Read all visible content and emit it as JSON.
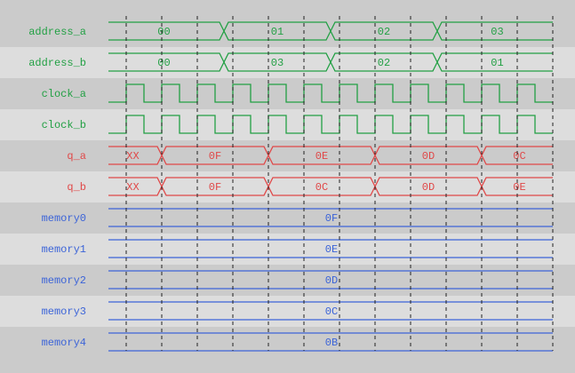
{
  "colors": {
    "background_dark": "#cbcbcb",
    "background_light": "#dddddd",
    "green": "#22a044",
    "red": "#e04848",
    "blue": "#3c64d8",
    "grid": "#222222"
  },
  "time_divisions": 12,
  "signals": [
    {
      "name": "address_a",
      "kind": "bus",
      "color": "green",
      "segments": [
        {
          "from": 0,
          "to": 3.25,
          "value": "00"
        },
        {
          "from": 3.25,
          "to": 6.25,
          "value": "01"
        },
        {
          "from": 6.25,
          "to": 9.25,
          "value": "02"
        },
        {
          "from": 9.25,
          "to": 12.5,
          "value": "03"
        }
      ]
    },
    {
      "name": "address_b",
      "kind": "bus",
      "color": "green",
      "segments": [
        {
          "from": 0,
          "to": 3.25,
          "value": "00"
        },
        {
          "from": 3.25,
          "to": 6.25,
          "value": "03"
        },
        {
          "from": 6.25,
          "to": 9.25,
          "value": "02"
        },
        {
          "from": 9.25,
          "to": 12.5,
          "value": "01"
        }
      ]
    },
    {
      "name": "clock_a",
      "kind": "clock",
      "color": "green"
    },
    {
      "name": "clock_b",
      "kind": "clock",
      "color": "green"
    },
    {
      "name": "q_a",
      "kind": "bus",
      "color": "red",
      "segments": [
        {
          "from": 0,
          "to": 1.5,
          "value": "XX"
        },
        {
          "from": 1.5,
          "to": 4.5,
          "value": "0F"
        },
        {
          "from": 4.5,
          "to": 7.5,
          "value": "0E"
        },
        {
          "from": 7.5,
          "to": 10.5,
          "value": "0D"
        },
        {
          "from": 10.5,
          "to": 12.5,
          "value": "0C"
        }
      ]
    },
    {
      "name": "q_b",
      "kind": "bus",
      "color": "red",
      "segments": [
        {
          "from": 0,
          "to": 1.5,
          "value": "XX"
        },
        {
          "from": 1.5,
          "to": 4.5,
          "value": "0F"
        },
        {
          "from": 4.5,
          "to": 7.5,
          "value": "0C"
        },
        {
          "from": 7.5,
          "to": 10.5,
          "value": "0D"
        },
        {
          "from": 10.5,
          "to": 12.5,
          "value": "0E"
        }
      ]
    },
    {
      "name": "memory0",
      "kind": "bus",
      "color": "blue",
      "segments": [
        {
          "from": 0,
          "to": 12.5,
          "value": "0F"
        }
      ]
    },
    {
      "name": "memory1",
      "kind": "bus",
      "color": "blue",
      "segments": [
        {
          "from": 0,
          "to": 12.5,
          "value": "0E"
        }
      ]
    },
    {
      "name": "memory2",
      "kind": "bus",
      "color": "blue",
      "segments": [
        {
          "from": 0,
          "to": 12.5,
          "value": "0D"
        }
      ]
    },
    {
      "name": "memory3",
      "kind": "bus",
      "color": "blue",
      "segments": [
        {
          "from": 0,
          "to": 12.5,
          "value": "0C"
        }
      ]
    },
    {
      "name": "memory4",
      "kind": "bus",
      "color": "blue",
      "segments": [
        {
          "from": 0,
          "to": 12.5,
          "value": "0B"
        }
      ]
    }
  ]
}
